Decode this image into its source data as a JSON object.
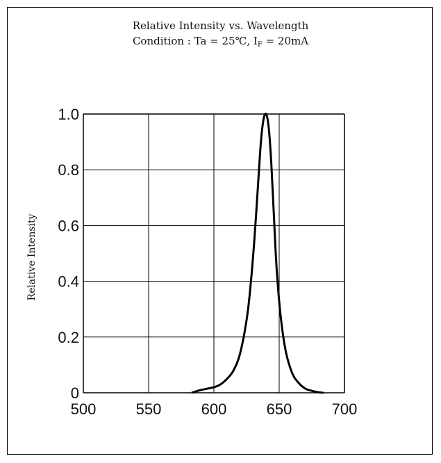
{
  "chart_data": {
    "type": "line",
    "title": "Relative Intensity vs. Wavelength",
    "subtitle_prefix": "Condition : Ta = 25℃, I",
    "subtitle_sub": "F",
    "subtitle_suffix": " = 20mA",
    "xlabel": "",
    "ylabel": "Relative Intensity",
    "xlim": [
      500,
      700
    ],
    "ylim": [
      0,
      1.0
    ],
    "x_ticks": [
      "500",
      "550",
      "600",
      "650",
      "700"
    ],
    "y_ticks": [
      "0",
      "0.2",
      "0.4",
      "0.6",
      "0.8",
      "1.0"
    ],
    "grid": true,
    "series": [
      {
        "x": [
          583,
          590,
          600,
          605,
          610,
          615,
          620,
          625,
          628,
          631,
          634,
          636,
          638,
          640,
          642,
          644,
          646,
          648,
          651,
          655,
          660,
          665,
          670,
          675,
          680,
          684
        ],
        "y": [
          0.0,
          0.01,
          0.02,
          0.03,
          0.05,
          0.08,
          0.14,
          0.26,
          0.38,
          0.55,
          0.76,
          0.9,
          0.98,
          1.0,
          0.95,
          0.82,
          0.63,
          0.45,
          0.28,
          0.15,
          0.07,
          0.035,
          0.015,
          0.007,
          0.002,
          0.0
        ]
      }
    ]
  }
}
